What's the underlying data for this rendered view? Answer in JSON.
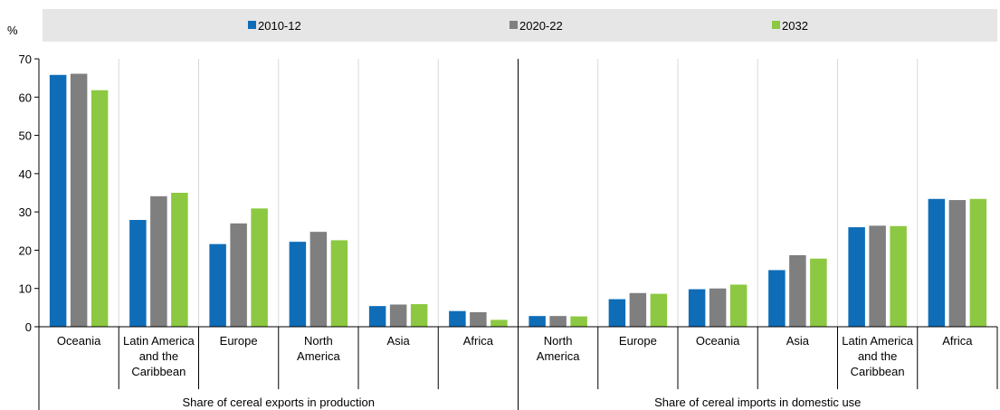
{
  "chart_data": {
    "type": "bar",
    "ylabel": "%",
    "ylim": [
      0,
      70
    ],
    "yticks": [
      0,
      10,
      20,
      30,
      40,
      50,
      60,
      70
    ],
    "grid": true,
    "legend_position": "top",
    "series": [
      {
        "name": "2010-12",
        "color": "#0F6DB8"
      },
      {
        "name": "2020-22",
        "color": "#7F7F7F"
      },
      {
        "name": "2032",
        "color": "#8CC841"
      }
    ],
    "groups": [
      {
        "label": "Share of cereal exports in production",
        "categories": [
          {
            "label": [
              "Oceania"
            ],
            "values": [
              65.8,
              66.1,
              61.8
            ]
          },
          {
            "label": [
              "Latin America",
              "and the",
              "Caribbean"
            ],
            "values": [
              27.9,
              34.1,
              35.0
            ]
          },
          {
            "label": [
              "Europe"
            ],
            "values": [
              21.6,
              27.0,
              30.9
            ]
          },
          {
            "label": [
              "North",
              "America"
            ],
            "values": [
              22.2,
              24.8,
              22.6
            ]
          },
          {
            "label": [
              "Asia"
            ],
            "values": [
              5.4,
              5.8,
              5.9
            ]
          },
          {
            "label": [
              "Africa"
            ],
            "values": [
              4.1,
              3.8,
              1.8
            ]
          }
        ]
      },
      {
        "label": "Share of cereal imports in domestic use",
        "categories": [
          {
            "label": [
              "North",
              "America"
            ],
            "values": [
              2.8,
              2.8,
              2.7
            ]
          },
          {
            "label": [
              "Europe"
            ],
            "values": [
              7.2,
              8.8,
              8.6
            ]
          },
          {
            "label": [
              "Oceania"
            ],
            "values": [
              9.8,
              10.0,
              11.0
            ]
          },
          {
            "label": [
              "Asia"
            ],
            "values": [
              14.8,
              18.7,
              17.8
            ]
          },
          {
            "label": [
              "Latin America",
              "and the",
              "Caribbean"
            ],
            "values": [
              26.0,
              26.4,
              26.3
            ]
          },
          {
            "label": [
              "Africa"
            ],
            "values": [
              33.4,
              33.1,
              33.4
            ]
          }
        ]
      }
    ]
  }
}
